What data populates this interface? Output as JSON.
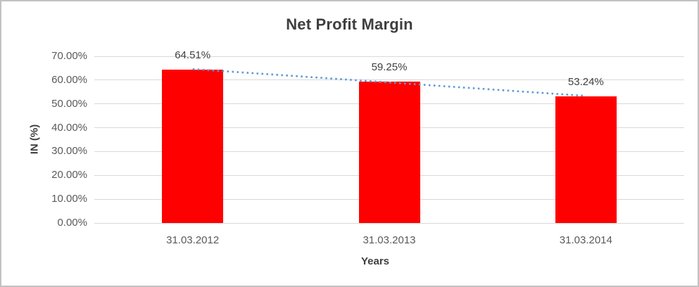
{
  "chart_data": {
    "type": "bar",
    "title": "Net Profit Margin",
    "xlabel": "Years",
    "ylabel": "IN (%)",
    "categories": [
      "31.03.2012",
      "31.03.2013",
      "31.03.2014"
    ],
    "values": [
      64.51,
      59.25,
      53.24
    ],
    "value_labels": [
      "64.51%",
      "59.25%",
      "53.24%"
    ],
    "ylim": [
      0,
      70
    ],
    "ytick_step": 10,
    "yticks": [
      {
        "value": 0,
        "label": "0.00%"
      },
      {
        "value": 10,
        "label": "10.00%"
      },
      {
        "value": 20,
        "label": "20.00%"
      },
      {
        "value": 30,
        "label": "30.00%"
      },
      {
        "value": 40,
        "label": "40.00%"
      },
      {
        "value": 50,
        "label": "50.00%"
      },
      {
        "value": 60,
        "label": "60.00%"
      },
      {
        "value": 70,
        "label": "70.00%"
      }
    ],
    "grid": true,
    "legend": "none",
    "trendline": {
      "type": "linear",
      "style": "dotted"
    },
    "colors": {
      "bar": "#ff0000",
      "trendline": "#5b9bd5",
      "gridline": "#d9d9d9",
      "axis_line": "#d9d9d9",
      "title_text": "#3f3f3f",
      "tick_text": "#595959",
      "data_label_text": "#404040",
      "border": "#c2c2c2"
    }
  }
}
